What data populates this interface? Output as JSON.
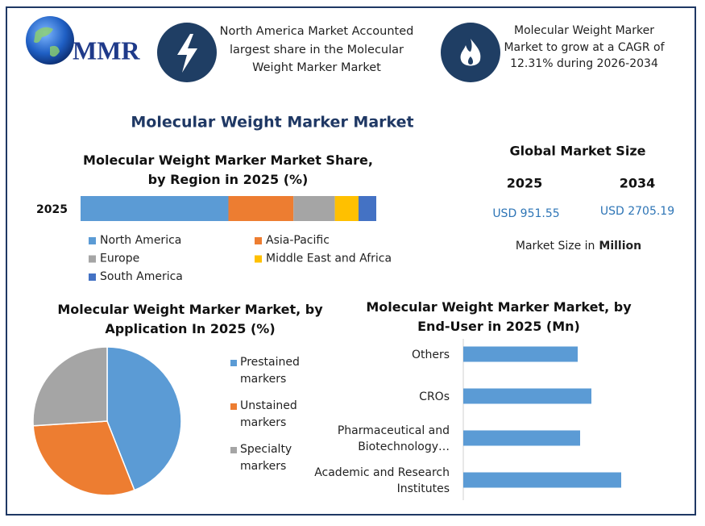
{
  "logo": {
    "text": "MMR"
  },
  "highlights": [
    {
      "text": "North America Market Accounted largest share in the Molecular Weight Marker Market"
    },
    {
      "text": "Molecular Weight Marker Market to grow at a CAGR of 12.31% during 2026-2034"
    }
  ],
  "main_title": "Molecular Weight Marker Market",
  "market_size": {
    "title": "Global Market Size",
    "years": [
      "2025",
      "2034"
    ],
    "values": [
      "USD 951.55",
      "USD 2705.19"
    ],
    "note": "Market Size in",
    "unit": "Million"
  },
  "chart_data": [
    {
      "type": "stacked_bar",
      "title": "Molecular Weight Marker Market Share, by Region in 2025 (%)",
      "categories": [
        "2025"
      ],
      "series": [
        {
          "name": "North America",
          "color": "#5b9bd5",
          "values": [
            50
          ]
        },
        {
          "name": "Asia-Pacific",
          "color": "#ed7d31",
          "values": [
            22
          ]
        },
        {
          "name": "Europe",
          "color": "#a5a5a5",
          "values": [
            14
          ]
        },
        {
          "name": "Middle East and Africa",
          "color": "#ffc000",
          "values": [
            8
          ]
        },
        {
          "name": "South America",
          "color": "#4472c4",
          "values": [
            6
          ]
        }
      ]
    },
    {
      "type": "pie",
      "title": "Molecular Weight Marker Market, by Application In 2025 (%)",
      "categories": [
        "Prestained markers",
        "Unstained markers",
        "Specialty markers"
      ],
      "values": [
        44,
        30,
        26
      ],
      "colors": [
        "#5b9bd5",
        "#ed7d31",
        "#a5a5a5"
      ]
    },
    {
      "type": "bar",
      "orientation": "horizontal",
      "title": "Molecular Weight Marker Market, by End-User in 2025 (Mn)",
      "categories": [
        "Others",
        "CROs",
        "Pharmaceutical and Biotechnology…",
        "Academic and Research Institutes"
      ],
      "values": [
        142,
        159,
        145,
        196
      ],
      "color": "#5b9bd5"
    }
  ]
}
